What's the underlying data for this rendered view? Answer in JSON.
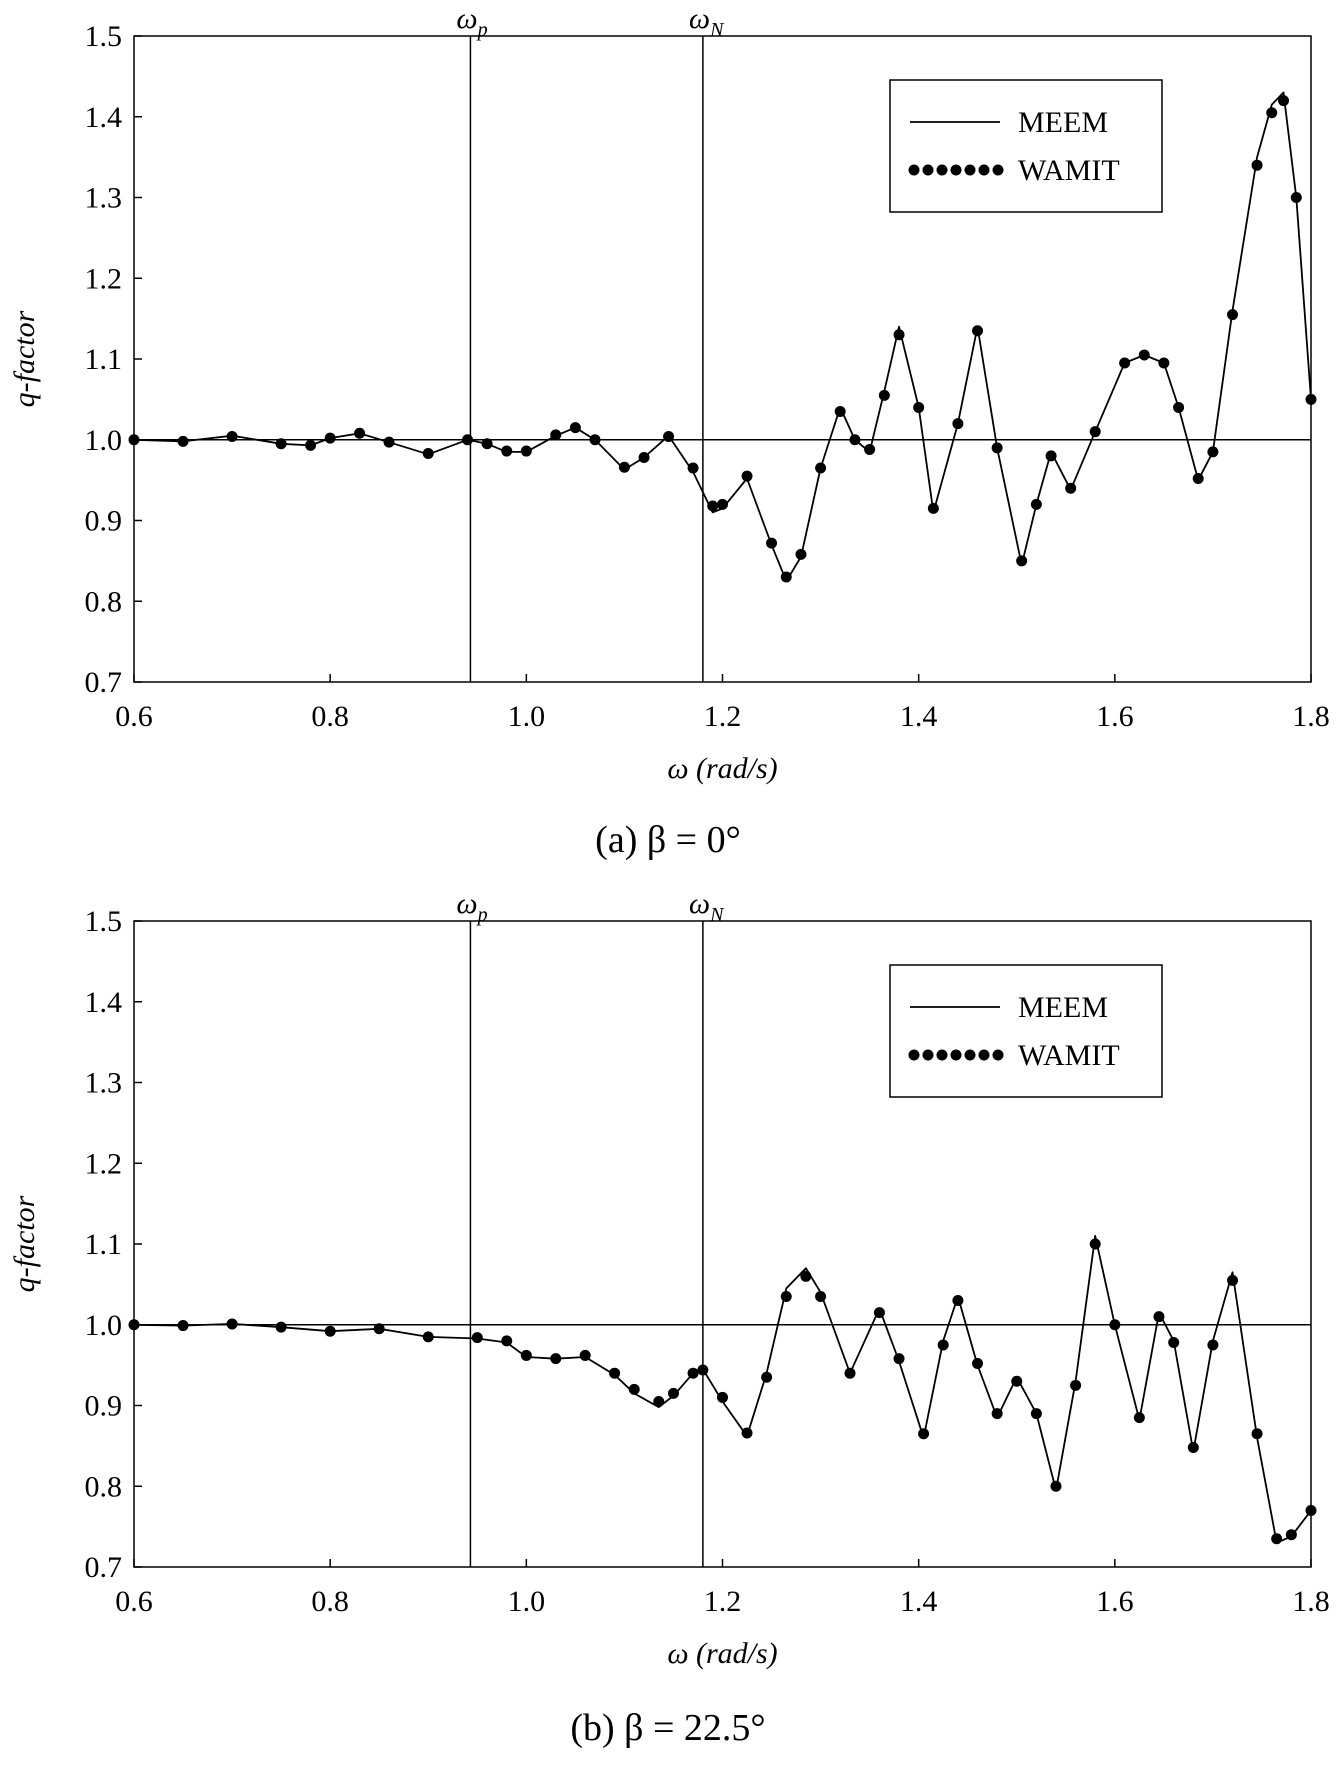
{
  "chart_data": [
    {
      "type": "line",
      "caption": "(a)  β = 0°",
      "xlabel": "ω (rad/s)",
      "ylabel": "q-factor",
      "xlim": [
        0.6,
        1.8
      ],
      "ylim": [
        0.7,
        1.5
      ],
      "x_ticks": [
        "0.6",
        "0.8",
        "1.0",
        "1.2",
        "1.4",
        "1.6",
        "1.8"
      ],
      "y_ticks": [
        "0.7",
        "0.8",
        "0.9",
        "1.0",
        "1.1",
        "1.2",
        "1.3",
        "1.4",
        "1.5"
      ],
      "reference_line_y": 1.0,
      "vertical_markers": [
        {
          "label": "ω",
          "sub": "p",
          "x": 0.943
        },
        {
          "label": "ω",
          "sub": "N",
          "x": 1.18
        }
      ],
      "legend": {
        "position": "top-right",
        "entries": [
          "MEEM",
          "WAMIT"
        ]
      },
      "series": [
        {
          "name": "MEEM",
          "style": "solid",
          "x": [
            0.6,
            0.65,
            0.7,
            0.75,
            0.78,
            0.8,
            0.83,
            0.86,
            0.9,
            0.94,
            0.96,
            0.98,
            1.0,
            1.03,
            1.05,
            1.07,
            1.1,
            1.12,
            1.145,
            1.17,
            1.19,
            1.2,
            1.225,
            1.25,
            1.265,
            1.28,
            1.3,
            1.32,
            1.335,
            1.35,
            1.365,
            1.38,
            1.4,
            1.415,
            1.44,
            1.46,
            1.48,
            1.505,
            1.52,
            1.535,
            1.555,
            1.58,
            1.61,
            1.63,
            1.65,
            1.665,
            1.685,
            1.7,
            1.72,
            1.745,
            1.76,
            1.772,
            1.785,
            1.8
          ],
          "y": [
            1.0,
            0.998,
            1.005,
            0.995,
            0.993,
            1.002,
            1.008,
            0.997,
            0.982,
            1.0,
            0.995,
            0.985,
            0.985,
            1.005,
            1.015,
            1.0,
            0.963,
            0.978,
            1.005,
            0.96,
            0.91,
            0.915,
            0.952,
            0.87,
            0.825,
            0.855,
            0.965,
            1.04,
            1.0,
            0.985,
            1.06,
            1.14,
            1.04,
            0.91,
            1.02,
            1.14,
            0.99,
            0.845,
            0.92,
            0.985,
            0.938,
            1.01,
            1.095,
            1.105,
            1.095,
            1.04,
            0.95,
            0.985,
            1.16,
            1.35,
            1.415,
            1.43,
            1.3,
            1.05
          ]
        },
        {
          "name": "WAMIT",
          "style": "dotted",
          "x": [
            0.6,
            0.65,
            0.7,
            0.75,
            0.78,
            0.8,
            0.83,
            0.86,
            0.9,
            0.94,
            0.96,
            0.98,
            1.0,
            1.03,
            1.05,
            1.07,
            1.1,
            1.12,
            1.145,
            1.17,
            1.19,
            1.2,
            1.225,
            1.25,
            1.265,
            1.28,
            1.3,
            1.32,
            1.335,
            1.35,
            1.365,
            1.38,
            1.4,
            1.415,
            1.44,
            1.46,
            1.48,
            1.505,
            1.52,
            1.535,
            1.555,
            1.58,
            1.61,
            1.63,
            1.65,
            1.665,
            1.685,
            1.7,
            1.72,
            1.745,
            1.76,
            1.772,
            1.785,
            1.8
          ],
          "y": [
            1.0,
            0.998,
            1.004,
            0.995,
            0.993,
            1.002,
            1.008,
            0.997,
            0.983,
            1.0,
            0.995,
            0.986,
            0.986,
            1.006,
            1.015,
            1.0,
            0.966,
            0.978,
            1.004,
            0.965,
            0.918,
            0.92,
            0.955,
            0.872,
            0.83,
            0.858,
            0.965,
            1.035,
            1.0,
            0.988,
            1.055,
            1.13,
            1.04,
            0.915,
            1.02,
            1.135,
            0.99,
            0.85,
            0.92,
            0.98,
            0.94,
            1.01,
            1.095,
            1.105,
            1.095,
            1.04,
            0.952,
            0.985,
            1.155,
            1.34,
            1.405,
            1.42,
            1.3,
            1.05
          ]
        }
      ]
    },
    {
      "type": "line",
      "caption": "(b)  β = 22.5°",
      "xlabel": "ω (rad/s)",
      "ylabel": "q-factor",
      "xlim": [
        0.6,
        1.8
      ],
      "ylim": [
        0.7,
        1.5
      ],
      "x_ticks": [
        "0.6",
        "0.8",
        "1.0",
        "1.2",
        "1.4",
        "1.6",
        "1.8"
      ],
      "y_ticks": [
        "0.7",
        "0.8",
        "0.9",
        "1.0",
        "1.1",
        "1.2",
        "1.3",
        "1.4",
        "1.5"
      ],
      "reference_line_y": 1.0,
      "vertical_markers": [
        {
          "label": "ω",
          "sub": "p",
          "x": 0.943
        },
        {
          "label": "ω",
          "sub": "N",
          "x": 1.18
        }
      ],
      "legend": {
        "position": "top-right",
        "entries": [
          "MEEM",
          "WAMIT"
        ]
      },
      "series": [
        {
          "name": "MEEM",
          "style": "solid",
          "x": [
            0.6,
            0.65,
            0.7,
            0.75,
            0.8,
            0.85,
            0.9,
            0.95,
            0.98,
            1.0,
            1.03,
            1.06,
            1.09,
            1.11,
            1.135,
            1.15,
            1.17,
            1.18,
            1.2,
            1.225,
            1.245,
            1.265,
            1.285,
            1.3,
            1.33,
            1.36,
            1.38,
            1.405,
            1.425,
            1.44,
            1.46,
            1.48,
            1.5,
            1.52,
            1.54,
            1.56,
            1.58,
            1.6,
            1.625,
            1.645,
            1.66,
            1.68,
            1.7,
            1.72,
            1.745,
            1.765,
            1.78,
            1.8
          ],
          "y": [
            1.0,
            0.999,
            1.001,
            0.997,
            0.992,
            0.995,
            0.985,
            0.983,
            0.978,
            0.96,
            0.958,
            0.96,
            0.938,
            0.915,
            0.898,
            0.912,
            0.94,
            0.945,
            0.905,
            0.862,
            0.94,
            1.045,
            1.07,
            1.04,
            0.94,
            1.02,
            0.955,
            0.86,
            0.98,
            1.035,
            0.95,
            0.885,
            0.935,
            0.89,
            0.795,
            0.93,
            1.11,
            1.0,
            0.882,
            1.015,
            0.98,
            0.843,
            0.98,
            1.065,
            0.86,
            0.73,
            0.738,
            0.77
          ]
        },
        {
          "name": "WAMIT",
          "style": "dotted",
          "x": [
            0.6,
            0.65,
            0.7,
            0.75,
            0.8,
            0.85,
            0.9,
            0.95,
            0.98,
            1.0,
            1.03,
            1.06,
            1.09,
            1.11,
            1.135,
            1.15,
            1.17,
            1.18,
            1.2,
            1.225,
            1.245,
            1.265,
            1.285,
            1.3,
            1.33,
            1.36,
            1.38,
            1.405,
            1.425,
            1.44,
            1.46,
            1.48,
            1.5,
            1.52,
            1.54,
            1.56,
            1.58,
            1.6,
            1.625,
            1.645,
            1.66,
            1.68,
            1.7,
            1.72,
            1.745,
            1.765,
            1.78,
            1.8
          ],
          "y": [
            1.0,
            0.999,
            1.001,
            0.997,
            0.992,
            0.995,
            0.985,
            0.984,
            0.98,
            0.962,
            0.958,
            0.962,
            0.94,
            0.92,
            0.905,
            0.915,
            0.94,
            0.944,
            0.91,
            0.866,
            0.935,
            1.035,
            1.06,
            1.035,
            0.94,
            1.015,
            0.958,
            0.865,
            0.975,
            1.03,
            0.952,
            0.89,
            0.93,
            0.89,
            0.8,
            0.925,
            1.1,
            1.0,
            0.885,
            1.01,
            0.978,
            0.848,
            0.975,
            1.055,
            0.865,
            0.735,
            0.74,
            0.77
          ]
        }
      ]
    }
  ]
}
